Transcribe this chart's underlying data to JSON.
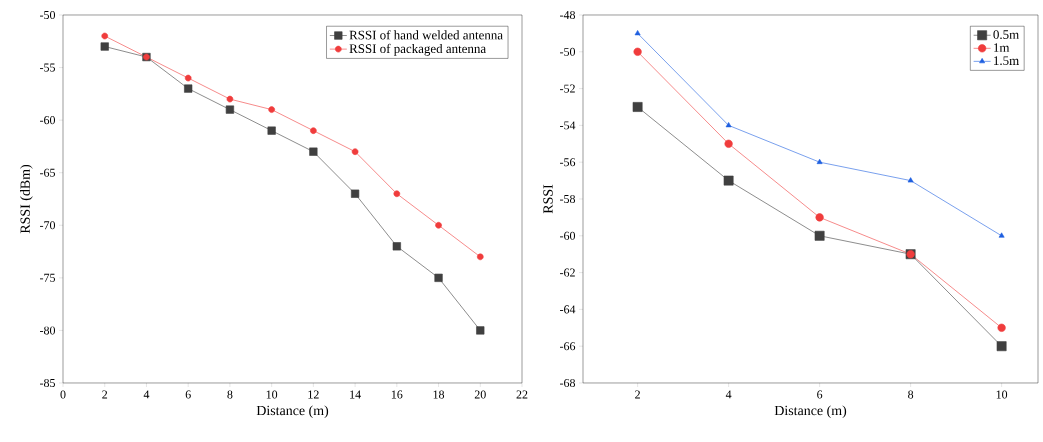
{
  "chart_data": [
    {
      "type": "line",
      "xlabel": "Distance (m)",
      "ylabel": "RSSI (dBm)",
      "xlim": [
        0,
        22
      ],
      "xticks": [
        0,
        2,
        4,
        6,
        8,
        10,
        12,
        14,
        16,
        18,
        20,
        22
      ],
      "ylim": [
        -85,
        -50
      ],
      "yticks": [
        -85,
        -80,
        -75,
        -70,
        -65,
        -60,
        -55,
        -50
      ],
      "legend": "top right",
      "line_style": "solid",
      "x": [
        2,
        4,
        6,
        8,
        10,
        12,
        14,
        16,
        18,
        20
      ],
      "series": [
        {
          "name": "RSSI of hand welded antenna",
          "color": "#404040",
          "marker": "square",
          "values": [
            -53,
            -54,
            -57,
            -59,
            -61,
            -63,
            -67,
            -72,
            -75,
            -80
          ]
        },
        {
          "name": "RSSI of packaged antenna",
          "color": "#f03c3c",
          "marker": "circle",
          "values": [
            -52,
            -54,
            -56,
            -58,
            -59,
            -61,
            -63,
            -67,
            -70,
            -73
          ]
        }
      ]
    },
    {
      "type": "line",
      "xlabel": "Distance (m)",
      "ylabel": "RSSI",
      "xlim": [
        0.8,
        10.8
      ],
      "xticks": [
        2,
        4,
        6,
        8,
        10
      ],
      "ylim": [
        -68,
        -48
      ],
      "yticks": [
        -68,
        -66,
        -64,
        -62,
        -60,
        -58,
        -56,
        -54,
        -52,
        -50,
        -48
      ],
      "legend": "top right",
      "line_style": "solid",
      "x": [
        2,
        4,
        6,
        8,
        10
      ],
      "series": [
        {
          "name": "0.5m",
          "color": "#404040",
          "marker": "square",
          "values": [
            -53,
            -57,
            -60,
            -61,
            -66
          ]
        },
        {
          "name": "1m",
          "color": "#f03c3c",
          "marker": "circle",
          "values": [
            -50,
            -55,
            -59,
            -61,
            -65
          ]
        },
        {
          "name": "1.5m",
          "color": "#1f5fe0",
          "marker": "triangle",
          "values": [
            -49,
            -54,
            -56,
            -57,
            -60
          ]
        }
      ]
    }
  ]
}
